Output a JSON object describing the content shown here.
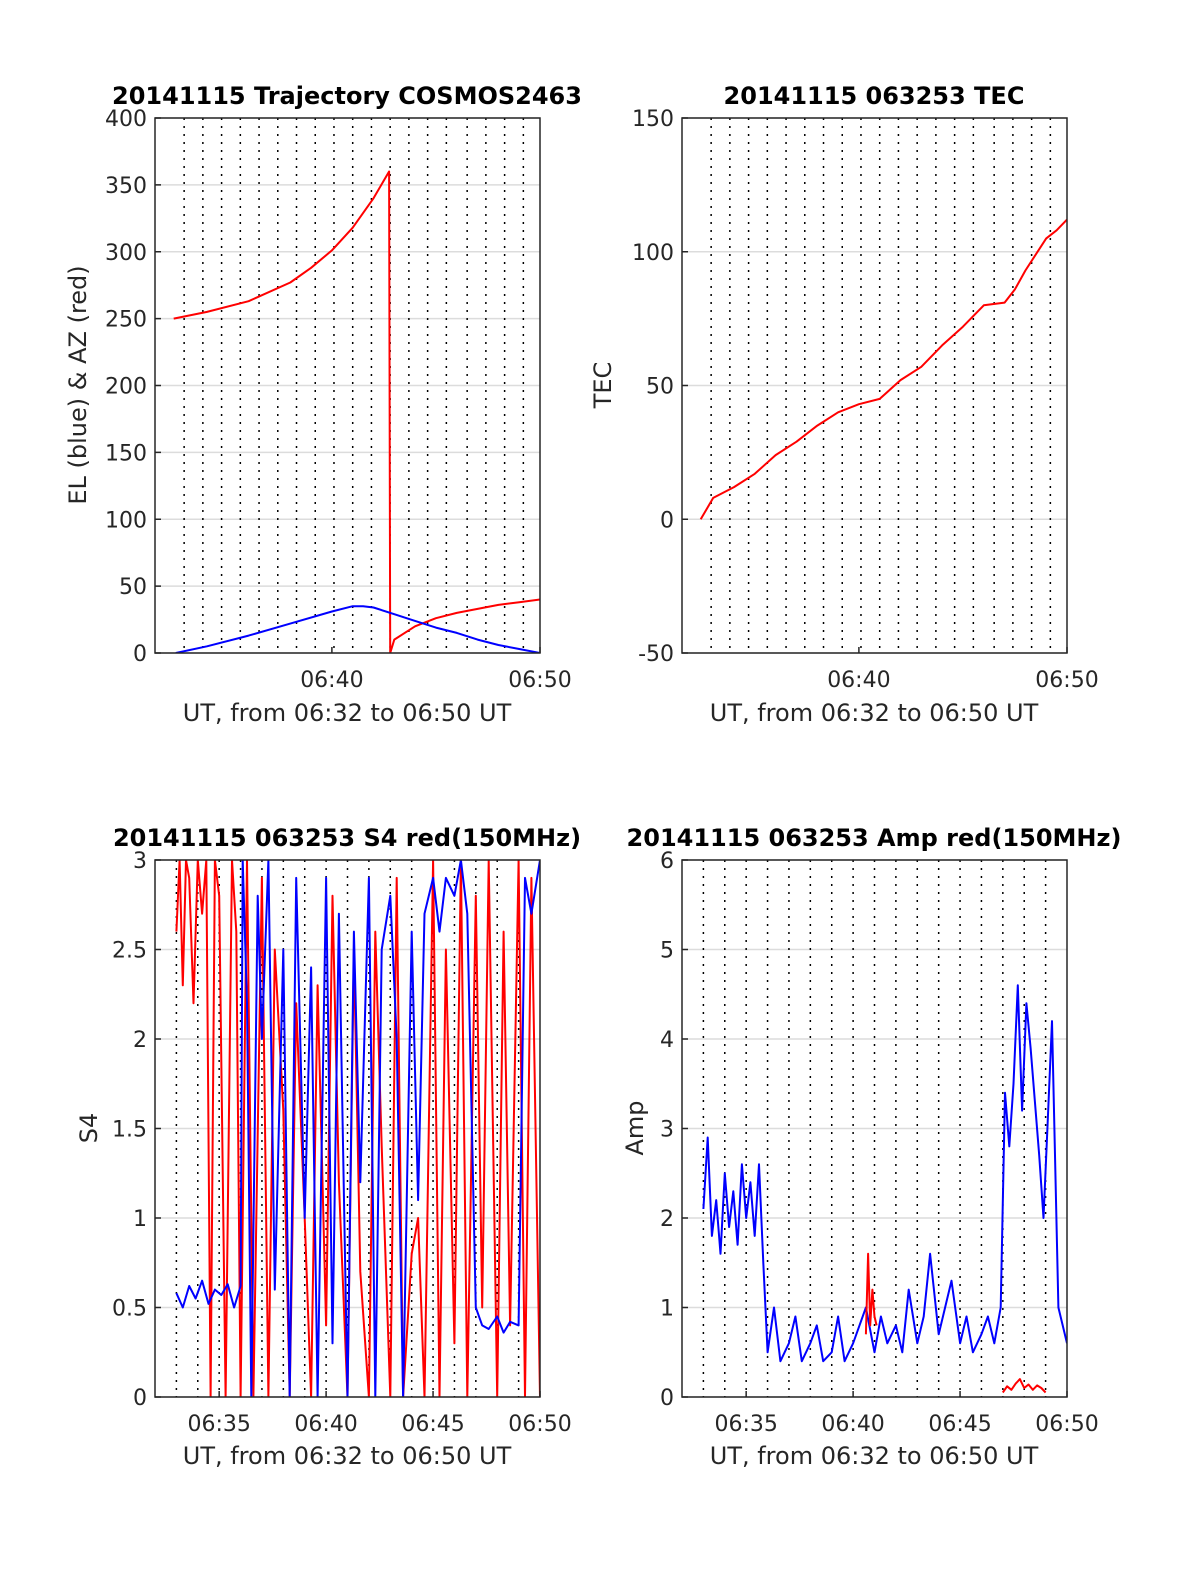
{
  "chart_data": [
    {
      "type": "line",
      "title": "20141115 Trajectory COSMOS2463",
      "xlabel": "UT, from 06:32 to 06:50 UT",
      "ylabel": "EL (blue) & AZ (red)",
      "xlim": [
        -0.5,
        18
      ],
      "ylim": [
        0,
        400
      ],
      "yticks": [
        0,
        50,
        100,
        150,
        200,
        250,
        300,
        350,
        400
      ],
      "xtick_values": [
        8,
        18
      ],
      "xtick_labels": [
        "06:40",
        "06:50"
      ],
      "minor_vgrid": [
        0.9,
        1.8,
        2.7,
        3.6,
        4.5,
        5.4,
        6.3,
        7.2,
        8.1,
        9.0,
        9.9,
        10.8,
        11.7,
        12.6,
        13.5,
        14.5,
        15.4,
        16.3,
        17.2
      ],
      "series": [
        {
          "color": "#ff0000",
          "x": [
            0.4,
            2,
            4,
            6,
            7,
            8,
            9,
            10,
            10.75,
            10.8,
            11,
            12,
            13,
            14,
            15,
            16,
            17,
            18
          ],
          "y": [
            250,
            255,
            263,
            277,
            288,
            301,
            318,
            340,
            360,
            0,
            10,
            20,
            26,
            30,
            33,
            36,
            38,
            40
          ]
        },
        {
          "color": "#0000ff",
          "x": [
            0.5,
            2,
            4,
            6,
            8,
            9,
            9.5,
            10,
            11,
            12,
            13,
            14,
            15,
            16,
            17,
            18
          ],
          "y": [
            0,
            5,
            13,
            22,
            31,
            35,
            35,
            34,
            29,
            24,
            19,
            15,
            10,
            6,
            3,
            0
          ]
        }
      ]
    },
    {
      "type": "line",
      "title": "20141115 063253 TEC",
      "xlabel": "UT, from 06:32 to 06:50 UT",
      "ylabel": "TEC",
      "xlim": [
        -0.5,
        18
      ],
      "ylim": [
        -50,
        150
      ],
      "yticks": [
        -50,
        0,
        50,
        100,
        150
      ],
      "xtick_values": [
        8,
        18
      ],
      "xtick_labels": [
        "06:40",
        "06:50"
      ],
      "minor_vgrid": [
        0.9,
        1.8,
        2.7,
        3.6,
        4.5,
        5.4,
        6.3,
        7.2,
        8.1,
        9.0,
        9.9,
        10.8,
        11.7,
        12.6,
        13.5,
        14.5,
        15.4,
        16.3,
        17.2
      ],
      "series": [
        {
          "color": "#ff0000",
          "x": [
            0.4,
            1,
            2,
            3,
            4,
            5,
            6,
            7,
            8,
            9,
            10,
            11,
            12,
            13,
            14,
            15,
            15.5,
            16,
            17,
            17.5,
            18
          ],
          "y": [
            0,
            8,
            12,
            17,
            24,
            29,
            35,
            40,
            43,
            45,
            52,
            57,
            65,
            72,
            80,
            81,
            86,
            93,
            105,
            108,
            112
          ]
        }
      ]
    },
    {
      "type": "line",
      "title": "20141115 063253 S4 red(150MHz)",
      "xlabel": "UT, from 06:32 to 06:50 UT",
      "ylabel": "S4",
      "xlim": [
        32.0,
        50.0
      ],
      "ylim": [
        0,
        3
      ],
      "yticks": [
        0,
        0.5,
        1,
        1.5,
        2,
        2.5,
        3
      ],
      "ytick_labels": [
        "0",
        "0.5",
        "1",
        "1.5",
        "2",
        "2.5",
        "3"
      ],
      "xtick_values": [
        35,
        40,
        45,
        50
      ],
      "xtick_labels": [
        "06:35",
        "06:40",
        "06:45",
        "06:50"
      ],
      "minor_vgrid": [
        33,
        34,
        35,
        36,
        37,
        38,
        39,
        40,
        41,
        42,
        43,
        44,
        45,
        46,
        47,
        48,
        49
      ],
      "series": [
        {
          "color": "#ff0000",
          "x": [
            33.0,
            33.15,
            33.3,
            33.45,
            33.6,
            33.8,
            34.0,
            34.2,
            34.4,
            34.6,
            34.8,
            35.0,
            35.3,
            35.6,
            35.8,
            36.0,
            36.3,
            36.6,
            37.0,
            37.3,
            37.6,
            38.0,
            38.3,
            38.6,
            39.0,
            39.3,
            39.6,
            40.0,
            40.3,
            40.6,
            41.0,
            41.3,
            41.6,
            42.0,
            42.3,
            42.6,
            43.0,
            43.3,
            43.6,
            44.0,
            44.3,
            44.6,
            45.0,
            45.3,
            45.6,
            46.0,
            46.3,
            46.6,
            47.0,
            47.3,
            47.6,
            48.0,
            48.3,
            48.6,
            49.0,
            49.3,
            49.6,
            50.0
          ],
          "y": [
            2.6,
            3.0,
            2.3,
            3.0,
            2.9,
            2.2,
            3.0,
            2.7,
            3.0,
            0.0,
            3.0,
            2.8,
            0.0,
            3.0,
            2.6,
            0.0,
            3.0,
            0.0,
            2.9,
            0.0,
            2.5,
            1.6,
            0.0,
            2.2,
            1.0,
            0.0,
            2.3,
            0.4,
            2.8,
            1.2,
            0.0,
            2.5,
            0.7,
            0.0,
            2.6,
            1.4,
            0.0,
            2.9,
            0.0,
            0.8,
            1.0,
            0.0,
            3.0,
            0.0,
            2.5,
            0.3,
            3.0,
            0.0,
            2.8,
            0.5,
            3.0,
            0.0,
            2.6,
            0.4,
            3.0,
            0.0,
            2.9,
            0.0
          ]
        },
        {
          "color": "#0000ff",
          "x": [
            33.0,
            33.3,
            33.6,
            33.9,
            34.2,
            34.5,
            34.8,
            35.1,
            35.4,
            35.7,
            36.0,
            36.1,
            36.3,
            36.5,
            36.8,
            37.0,
            37.3,
            37.6,
            38.0,
            38.3,
            38.6,
            39.0,
            39.3,
            39.6,
            40.0,
            40.3,
            40.6,
            41.0,
            41.3,
            41.6,
            42.0,
            42.3,
            42.6,
            43.0,
            43.3,
            43.6,
            44.0,
            44.3,
            44.6,
            45.0,
            45.3,
            45.6,
            46.0,
            46.3,
            46.6,
            47.0,
            47.3,
            47.6,
            48.0,
            48.3,
            48.6,
            49.0,
            49.3,
            49.6,
            50.0
          ],
          "y": [
            0.58,
            0.5,
            0.62,
            0.55,
            0.65,
            0.52,
            0.6,
            0.57,
            0.63,
            0.5,
            0.62,
            3.0,
            2.2,
            0.0,
            2.8,
            2.0,
            3.0,
            0.6,
            2.5,
            0.0,
            2.9,
            1.0,
            2.4,
            0.0,
            2.9,
            0.3,
            2.7,
            0.0,
            2.6,
            1.2,
            2.9,
            0.0,
            2.5,
            2.8,
            2.0,
            0.0,
            2.6,
            1.1,
            2.7,
            2.9,
            2.6,
            2.9,
            2.8,
            3.0,
            2.7,
            0.5,
            0.4,
            0.38,
            0.45,
            0.36,
            0.42,
            0.4,
            2.9,
            2.7,
            3.0
          ]
        }
      ]
    },
    {
      "type": "line",
      "title": "20141115 063253 Amp red(150MHz)",
      "xlabel": "UT, from 06:32 to 06:50 UT",
      "ylabel": "Amp",
      "xlim": [
        32.0,
        50.0
      ],
      "ylim": [
        0,
        6
      ],
      "yticks": [
        0,
        1,
        2,
        3,
        4,
        5,
        6
      ],
      "xtick_values": [
        35,
        40,
        45,
        50
      ],
      "xtick_labels": [
        "06:35",
        "06:40",
        "06:45",
        "06:50"
      ],
      "minor_vgrid": [
        33,
        34,
        35,
        36,
        37,
        38,
        39,
        40,
        41,
        42,
        43,
        44,
        45,
        46,
        47,
        48,
        49
      ],
      "series": [
        {
          "color": "#0000ff",
          "x": [
            33.0,
            33.2,
            33.4,
            33.6,
            33.8,
            34.0,
            34.2,
            34.4,
            34.6,
            34.8,
            35.0,
            35.2,
            35.4,
            35.6,
            35.8,
            36.0,
            36.3,
            36.6,
            37.0,
            37.3,
            37.6,
            38.0,
            38.3,
            38.6,
            39.0,
            39.3,
            39.6,
            40.0,
            40.3,
            40.6,
            41.0,
            41.3,
            41.6,
            42.0,
            42.3,
            42.6,
            43.0,
            43.3,
            43.6,
            44.0,
            44.3,
            44.6,
            45.0,
            45.3,
            45.6,
            46.0,
            46.3,
            46.6,
            46.9,
            47.1,
            47.3,
            47.5,
            47.7,
            47.9,
            48.1,
            48.3,
            48.5,
            48.7,
            48.9,
            49.1,
            49.3,
            49.6,
            50.0
          ],
          "y": [
            2.1,
            2.9,
            1.8,
            2.2,
            1.6,
            2.5,
            1.9,
            2.3,
            1.7,
            2.6,
            2.0,
            2.4,
            1.8,
            2.6,
            1.5,
            0.5,
            1.0,
            0.4,
            0.6,
            0.9,
            0.4,
            0.6,
            0.8,
            0.4,
            0.5,
            0.9,
            0.4,
            0.6,
            0.8,
            1.0,
            0.5,
            0.9,
            0.6,
            0.8,
            0.5,
            1.2,
            0.6,
            0.9,
            1.6,
            0.7,
            1.0,
            1.3,
            0.6,
            0.9,
            0.5,
            0.7,
            0.9,
            0.6,
            1.0,
            3.4,
            2.8,
            3.5,
            4.6,
            3.2,
            4.4,
            3.9,
            3.3,
            2.7,
            2.0,
            3.1,
            4.2,
            1.0,
            0.6
          ]
        },
        {
          "color": "#ff0000",
          "x": [
            40.6,
            40.7,
            40.8,
            40.9,
            41.0,
            41.1
          ],
          "y": [
            0.7,
            1.6,
            0.8,
            1.2,
            0.9,
            0.8
          ]
        },
        {
          "color": "#ff0000",
          "x": [
            47.0,
            47.2,
            47.4,
            47.6,
            47.8,
            48.0,
            48.2,
            48.4,
            48.6,
            48.8,
            49.0
          ],
          "y": [
            0.05,
            0.12,
            0.08,
            0.15,
            0.2,
            0.1,
            0.14,
            0.08,
            0.13,
            0.1,
            0.05
          ]
        }
      ]
    }
  ]
}
